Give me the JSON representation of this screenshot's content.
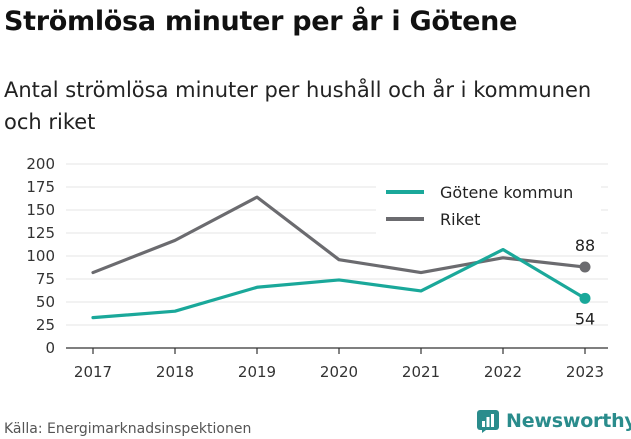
{
  "title": "Strömlösa minuter per år i Götene",
  "subtitle": "Antal strömlösa minuter per hushåll och år i kommunen och riket",
  "source": "Källa: Energimarknadsinspektionen",
  "brand": "Newsworthy",
  "colors": {
    "gotene": "#1aa89a",
    "riket": "#6b6b6f",
    "brand": "#2a8c8c"
  },
  "chart_data": {
    "type": "line",
    "title": "Strömlösa minuter per år i Götene",
    "x": [
      "2017",
      "2018",
      "2019",
      "2020",
      "2021",
      "2022",
      "2023"
    ],
    "ylim": [
      0,
      200
    ],
    "yticks": [
      "0",
      "25",
      "50",
      "75",
      "100",
      "125",
      "150",
      "175",
      "200"
    ],
    "series": [
      {
        "name": "Götene kommun",
        "values": [
          33,
          40,
          66,
          74,
          62,
          107,
          54
        ]
      },
      {
        "name": "Riket",
        "values": [
          82,
          117,
          164,
          96,
          82,
          98,
          88
        ]
      }
    ],
    "end_labels": [
      "54",
      "88"
    ],
    "legend_position": "top-right"
  }
}
